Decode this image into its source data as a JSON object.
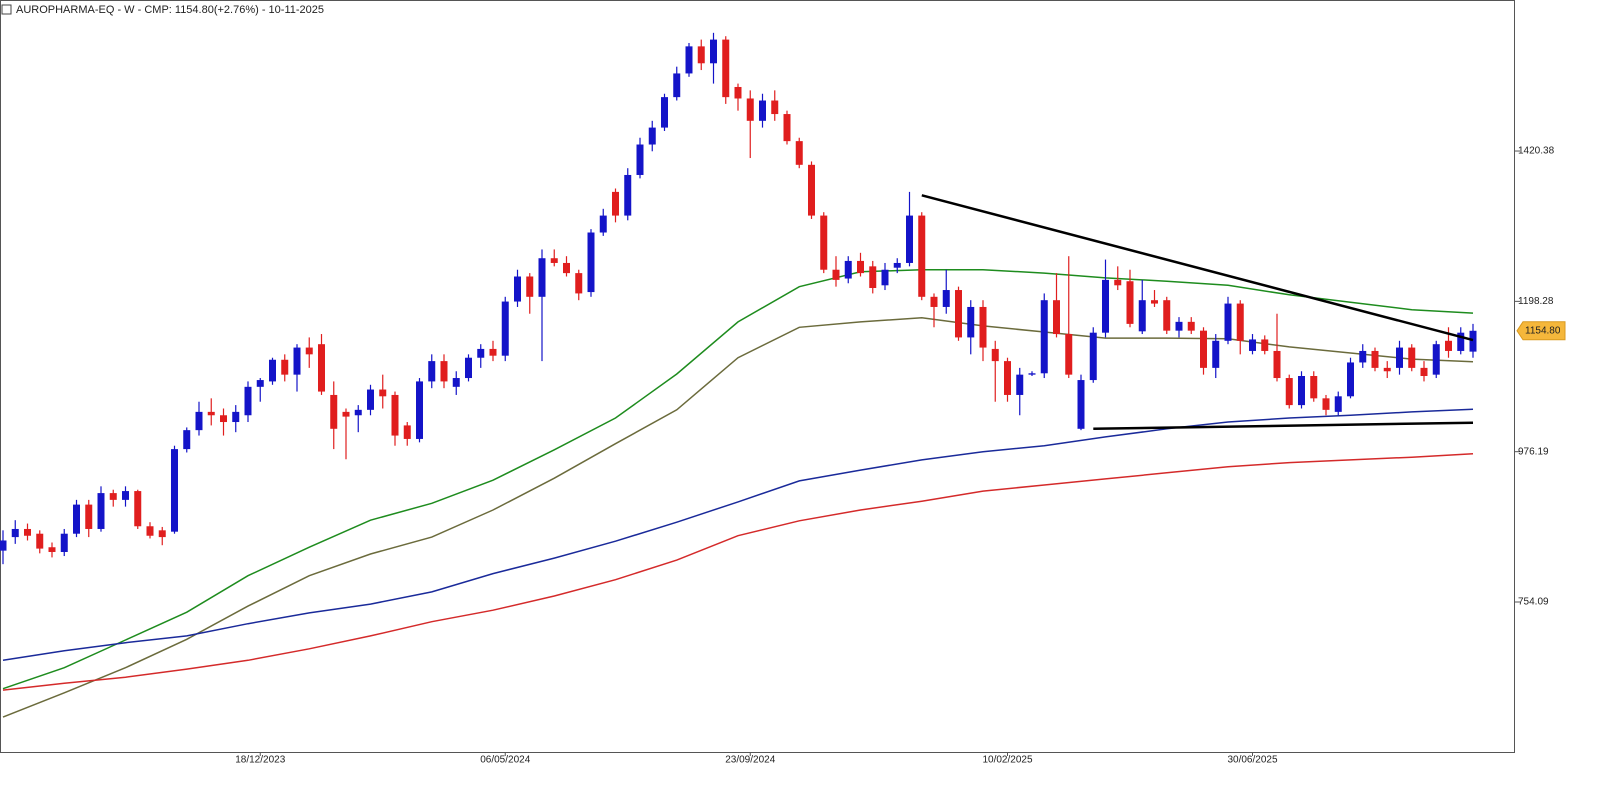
{
  "chart_data": {
    "type": "candlestick",
    "title": "AUROPHARMA-EQ - W - CMP: 1154.80(+2.76%) - 10-11-2025",
    "open": [
      830,
      850,
      862,
      855,
      835,
      828,
      855,
      898,
      862,
      915,
      905,
      918,
      866,
      860,
      858,
      980,
      1008,
      1035,
      1030,
      1020,
      1030,
      1072,
      1080,
      1112,
      1090,
      1130,
      1135,
      1060,
      1035,
      1030,
      1038,
      1068,
      1060,
      1015,
      995,
      1080,
      1110,
      1072,
      1085,
      1115,
      1128,
      1118,
      1198,
      1235,
      1205,
      1262,
      1255,
      1240,
      1212,
      1300,
      1360,
      1325,
      1385,
      1430,
      1455,
      1500,
      1535,
      1575,
      1550,
      1585,
      1515,
      1498,
      1465,
      1495,
      1475,
      1435,
      1400,
      1325,
      1245,
      1232,
      1258,
      1250,
      1222,
      1248,
      1255,
      1325,
      1205,
      1190,
      1215,
      1145,
      1190,
      1128,
      1110,
      1060,
      1090,
      1092,
      1200,
      1150,
      1010,
      1082,
      1152,
      1230,
      1228,
      1154,
      1200,
      1200,
      1155,
      1168,
      1155,
      1100,
      1140,
      1195,
      1125,
      1142,
      1125,
      1085,
      1045,
      1088,
      1055,
      1035,
      1058,
      1108,
      1125,
      1100,
      1100,
      1130,
      1100,
      1090,
      1140,
      1125,
      1124
    ],
    "high": [
      860,
      875,
      870,
      860,
      842,
      862,
      905,
      905,
      925,
      920,
      925,
      920,
      872,
      865,
      985,
      1012,
      1050,
      1055,
      1040,
      1045,
      1080,
      1085,
      1115,
      1120,
      1135,
      1145,
      1150,
      1080,
      1040,
      1045,
      1075,
      1090,
      1065,
      1020,
      1085,
      1120,
      1120,
      1095,
      1120,
      1135,
      1140,
      1205,
      1245,
      1240,
      1275,
      1275,
      1265,
      1245,
      1305,
      1335,
      1365,
      1395,
      1440,
      1465,
      1505,
      1545,
      1580,
      1585,
      1595,
      1590,
      1520,
      1510,
      1505,
      1510,
      1480,
      1440,
      1405,
      1330,
      1265,
      1265,
      1270,
      1258,
      1255,
      1262,
      1360,
      1330,
      1210,
      1245,
      1220,
      1200,
      1200,
      1140,
      1115,
      1100,
      1095,
      1210,
      1240,
      1265,
      1090,
      1160,
      1260,
      1250,
      1245,
      1230,
      1215,
      1205,
      1175,
      1175,
      1160,
      1150,
      1205,
      1200,
      1150,
      1148,
      1180,
      1090,
      1095,
      1095,
      1060,
      1065,
      1115,
      1135,
      1130,
      1110,
      1140,
      1135,
      1110,
      1140,
      1160,
      1160,
      1165
    ],
    "low": [
      810,
      840,
      845,
      826,
      820,
      822,
      850,
      850,
      858,
      895,
      895,
      862,
      848,
      838,
      855,
      975,
      1000,
      1015,
      1000,
      1005,
      1020,
      1050,
      1075,
      1080,
      1065,
      1100,
      1060,
      980,
      965,
      1005,
      1030,
      1040,
      985,
      985,
      990,
      1070,
      1070,
      1060,
      1080,
      1100,
      1110,
      1110,
      1190,
      1180,
      1110,
      1250,
      1235,
      1200,
      1205,
      1295,
      1315,
      1318,
      1380,
      1420,
      1450,
      1495,
      1530,
      1540,
      1520,
      1490,
      1480,
      1410,
      1455,
      1465,
      1430,
      1395,
      1320,
      1240,
      1220,
      1225,
      1235,
      1210,
      1215,
      1240,
      1250,
      1200,
      1160,
      1180,
      1140,
      1120,
      1110,
      1050,
      1050,
      1030,
      1088,
      1085,
      1145,
      1085,
      1008,
      1078,
      1145,
      1215,
      1160,
      1150,
      1190,
      1150,
      1145,
      1150,
      1090,
      1085,
      1135,
      1120,
      1120,
      1120,
      1080,
      1040,
      1040,
      1050,
      1030,
      1030,
      1055,
      1100,
      1095,
      1085,
      1090,
      1095,
      1080,
      1085,
      1115,
      1120,
      1115
    ],
    "close": [
      845,
      862,
      852,
      833,
      828,
      855,
      898,
      862,
      915,
      905,
      918,
      866,
      852,
      850,
      980,
      1008,
      1035,
      1030,
      1020,
      1035,
      1072,
      1082,
      1112,
      1090,
      1130,
      1120,
      1065,
      1010,
      1028,
      1038,
      1068,
      1058,
      1000,
      995,
      1080,
      1110,
      1080,
      1085,
      1115,
      1128,
      1118,
      1198,
      1235,
      1205,
      1262,
      1255,
      1240,
      1210,
      1300,
      1325,
      1325,
      1385,
      1430,
      1455,
      1500,
      1535,
      1575,
      1550,
      1585,
      1500,
      1498,
      1465,
      1495,
      1475,
      1435,
      1400,
      1325,
      1245,
      1230,
      1258,
      1240,
      1218,
      1245,
      1255,
      1325,
      1205,
      1190,
      1215,
      1145,
      1190,
      1130,
      1110,
      1060,
      1090,
      1092,
      1200,
      1150,
      1090,
      1082,
      1152,
      1230,
      1222,
      1165,
      1200,
      1195,
      1155,
      1168,
      1155,
      1100,
      1140,
      1195,
      1140,
      1142,
      1125,
      1085,
      1045,
      1088,
      1055,
      1038,
      1058,
      1108,
      1125,
      1100,
      1095,
      1130,
      1100,
      1088,
      1135,
      1125,
      1152,
      1154.8
    ],
    "up_color": "#1414c8",
    "down_color": "#e01e1e",
    "last_label": "1154.80",
    "lines": [
      {
        "color": "#1e8c1e",
        "x": [
          0,
          5,
          10,
          15,
          20,
          25,
          30,
          35,
          40,
          45,
          50,
          55,
          60,
          65,
          70,
          75,
          80,
          85,
          90,
          95,
          100,
          105,
          110,
          115,
          120
        ],
        "values": [
          626,
          657,
          698,
          739,
          793,
          835,
          875,
          900,
          934,
          979,
          1026,
          1091,
          1168,
          1220,
          1242,
          1245,
          1245,
          1240,
          1233,
          1228,
          1222,
          1208,
          1197,
          1186,
          1181
        ]
      },
      {
        "color": "#6b6b3c",
        "x": [
          0,
          5,
          10,
          15,
          20,
          25,
          30,
          35,
          40,
          45,
          50,
          55,
          60,
          65,
          70,
          75,
          80,
          85,
          90,
          95,
          100,
          105,
          110,
          115,
          120
        ],
        "values": [
          584,
          620,
          657,
          699,
          748,
          793,
          825,
          850,
          890,
          937,
          988,
          1038,
          1115,
          1160,
          1168,
          1174,
          1162,
          1153,
          1144,
          1144,
          1143,
          1131,
          1122,
          1113,
          1109
        ]
      },
      {
        "color": "#1a2a9a",
        "x": [
          0,
          5,
          10,
          15,
          20,
          25,
          30,
          35,
          40,
          45,
          50,
          55,
          60,
          65,
          70,
          75,
          80,
          85,
          90,
          95,
          100,
          105,
          110,
          115,
          120
        ],
        "values": [
          668,
          682,
          694,
          704,
          722,
          738,
          751,
          769,
          796,
          819,
          844,
          872,
          902,
          933,
          949,
          964,
          976,
          985,
          998,
          1010,
          1020,
          1026,
          1030,
          1035,
          1039
        ]
      },
      {
        "color": "#d42a2a",
        "x": [
          0,
          5,
          10,
          15,
          20,
          25,
          30,
          35,
          40,
          45,
          50,
          55,
          60,
          65,
          70,
          75,
          80,
          85,
          90,
          95,
          100,
          105,
          110,
          115,
          120
        ],
        "values": [
          624,
          634,
          643,
          655,
          668,
          685,
          704,
          725,
          742,
          763,
          787,
          816,
          852,
          874,
          890,
          903,
          918,
          927,
          936,
          945,
          954,
          960,
          964,
          968,
          973
        ]
      }
    ],
    "trendlines": [
      {
        "color": "#000000",
        "x": [
          75,
          120
        ],
        "values": [
          1355,
          1141
        ]
      },
      {
        "color": "#000000",
        "x": [
          89,
          120
        ],
        "values": [
          1010,
          1019
        ]
      }
    ],
    "ylim": [
      532.5,
      1643.5
    ],
    "yticks": [
      754.09,
      976.19,
      1198.28,
      1420.38
    ],
    "xlim": [
      0,
      123.4
    ],
    "xticks": [
      {
        "value": 21,
        "label": "18/12/2023"
      },
      {
        "value": 41,
        "label": "06/05/2024"
      },
      {
        "value": 61,
        "label": "23/09/2024"
      },
      {
        "value": 82,
        "label": "10/02/2025"
      },
      {
        "value": 102,
        "label": "30/06/2025"
      }
    ]
  }
}
